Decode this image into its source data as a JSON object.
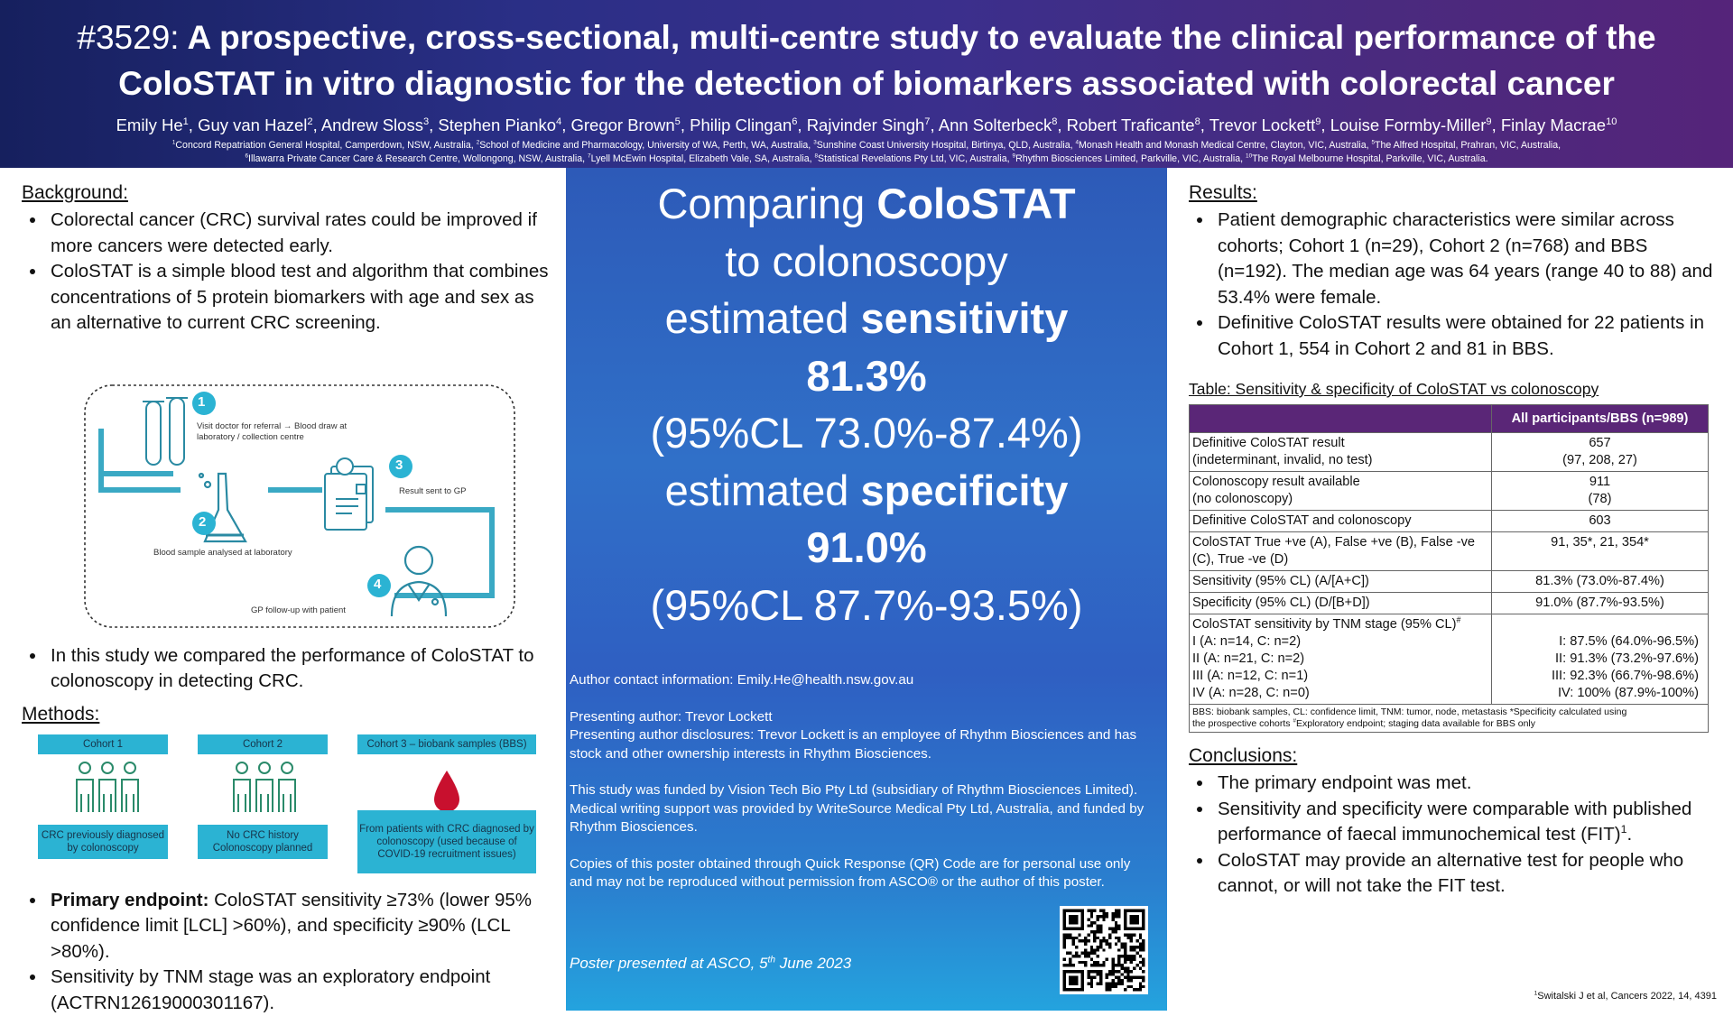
{
  "header": {
    "title_number": "#3529:",
    "title_line1": "A prospective, cross-sectional, multi-centre study to evaluate the clinical performance of the",
    "title_line2": "ColoSTAT in vitro diagnostic for the detection of biomarkers associated with colorectal cancer",
    "authors": [
      {
        "name": "Emily He",
        "sup": "1"
      },
      {
        "name": "Guy van Hazel",
        "sup": "2"
      },
      {
        "name": "Andrew Sloss",
        "sup": "3"
      },
      {
        "name": "Stephen Pianko",
        "sup": "4"
      },
      {
        "name": "Gregor Brown",
        "sup": "5"
      },
      {
        "name": "Philip Clingan",
        "sup": "6"
      },
      {
        "name": "Rajvinder Singh",
        "sup": "7"
      },
      {
        "name": "Ann Solterbeck",
        "sup": "8"
      },
      {
        "name": "Robert Traficante",
        "sup": "8"
      },
      {
        "name": "Trevor Lockett",
        "sup": "9"
      },
      {
        "name": "Louise Formby-Miller",
        "sup": "9"
      },
      {
        "name": "Finlay Macrae",
        "sup": "10"
      }
    ],
    "affiliations_line1": [
      {
        "sup": "1",
        "text": "Concord Repatriation General Hospital, Camperdown, NSW, Australia, "
      },
      {
        "sup": "2",
        "text": "School of Medicine and Pharmacology, University of WA, Perth, WA, Australia, "
      },
      {
        "sup": "3",
        "text": "Sunshine Coast University Hospital, Birtinya, QLD, Australia, "
      },
      {
        "sup": "4",
        "text": "Monash Health and Monash Medical Centre, Clayton, VIC, Australia, "
      },
      {
        "sup": "5",
        "text": "The Alfred Hospital, Prahran, VIC, Australia,"
      }
    ],
    "affiliations_line2": [
      {
        "sup": "6",
        "text": "Illawarra Private Cancer Care & Research Centre, Wollongong, NSW, Australia, "
      },
      {
        "sup": "7",
        "text": "Lyell McEwin Hospital, Elizabeth Vale, SA, Australia, "
      },
      {
        "sup": "8",
        "text": "Statistical Revelations Pty Ltd, VIC, Australia, "
      },
      {
        "sup": "9",
        "text": "Rhythm Biosciences Limited, Parkville, VIC, Australia, "
      },
      {
        "sup": "10",
        "text": "The Royal Melbourne Hospital, Parkville, VIC, Australia."
      }
    ]
  },
  "background": {
    "heading": "Background:",
    "bullets": [
      "Colorectal cancer (CRC) survival rates could be improved if more cancers were detected early.",
      "ColoSTAT is a simple blood test and algorithm that combines concentrations of 5 protein biomarkers with age and sex as an alternative to current CRC screening."
    ]
  },
  "diagram": {
    "step1_num": "1",
    "step1_text": "Visit doctor for referral → Blood draw at laboratory / collection centre",
    "step2_num": "2",
    "step2_text": "Blood sample analysed at laboratory",
    "step3_num": "3",
    "step3_text": "Result sent to GP",
    "step4_num": "4",
    "step4_text": "GP follow-up with patient"
  },
  "study_bullet": "In this study we compared the performance of ColoSTAT to colonoscopy in detecting CRC.",
  "methods": {
    "heading": "Methods:",
    "cohorts": [
      {
        "title": "Cohort 1",
        "desc": "CRC previously diagnosed by colonoscopy"
      },
      {
        "title": "Cohort 2",
        "desc": "No CRC history Colonoscopy planned"
      },
      {
        "title": "Cohort 3 – biobank samples (BBS)",
        "desc": "From patients with CRC diagnosed by colonoscopy (used because of COVID-19 recruitment issues)"
      }
    ],
    "primary_label": "Primary endpoint:",
    "primary_text": " ColoSTAT sensitivity ≥73% (lower 95% confidence limit [LCL] >60%), and specificity ≥90% (LCL >80%).",
    "exploratory": "Sensitivity by TNM stage was an exploratory endpoint (ACTRN12619000301167)."
  },
  "center": {
    "line1_plain": "Comparing ",
    "line1_bold": "ColoSTAT",
    "line2": "to colonoscopy",
    "line3_plain": "estimated ",
    "line3_bold": "sensitivity",
    "sensitivity": "81.3%",
    "sensitivity_ci": "(95%CL 73.0%-87.4%)",
    "line5_plain": "estimated ",
    "line5_bold": "specificity",
    "specificity": "91.0%",
    "specificity_ci": "(95%CL 87.7%-93.5%)",
    "contact": "Author contact information: Emily.He@health.nsw.gov.au",
    "presenting": "Presenting author: Trevor Lockett",
    "disclosures": "Presenting author disclosures: Trevor Lockett is an employee of Rhythm Biosciences and has stock and other ownership interests in Rhythm Biosciences.",
    "funding": "This study was funded by Vision Tech Bio Pty Ltd (subsidiary of Rhythm Biosciences Limited). Medical writing support was provided by WriteSource Medical Pty Ltd, Australia, and funded by Rhythm Biosciences.",
    "copies": "Copies of this poster obtained through Quick Response (QR) Code are for personal use only and may not be reproduced without permission from ASCO® or the author of this poster.",
    "poster_pre": "Poster presented at ASCO, 5",
    "poster_sup": "th",
    "poster_post": " June 2023"
  },
  "results": {
    "heading": "Results:",
    "bullets": [
      "Patient demographic characteristics were similar across cohorts; Cohort 1 (n=29), Cohort 2 (n=768) and BBS (n=192).  The median age was 64 years (range 40 to 88) and 53.4% were female.",
      "Definitive ColoSTAT results were obtained for 22 patients in Cohort 1, 554 in Cohort 2 and 81 in BBS."
    ]
  },
  "table": {
    "caption": "Table: Sensitivity & specificity of ColoSTAT vs colonoscopy",
    "header": "All participants/BBS (n=989)",
    "rows": [
      {
        "label1": "Definitive  ColoSTAT result",
        "label2": "(indeterminant, invalid, no test)",
        "v1": "657",
        "v2": "(97, 208, 27)"
      },
      {
        "label1": "Colonoscopy result available",
        "label2": "(no colonoscopy)",
        "v1": "911",
        "v2": "(78)"
      },
      {
        "label1": "Definitive ColoSTAT and colonoscopy",
        "v1": "603"
      },
      {
        "label1": "ColoSTAT True +ve (A), False +ve (B), False -ve (C), True -ve (D)",
        "v1": "91, 35*, 21, 354*"
      },
      {
        "label1": "Sensitivity (95% CL) (A/[A+C])",
        "v1": "81.3% (73.0%-87.4%)"
      },
      {
        "label1": "Specificity (95% CL) (D/[B+D])",
        "v1": "91.0% (87.7%-93.5%)"
      }
    ],
    "tnm_title": "ColoSTAT sensitivity by TNM stage (95% CL)",
    "tnm_sup": "#",
    "tnm": [
      {
        "label": "I (A: n=14, C: n=2)",
        "value": "I: 87.5% (64.0%-96.5%)"
      },
      {
        "label": "II (A: n=21, C: n=2)",
        "value": "II: 91.3% (73.2%-97.6%)"
      },
      {
        "label": "III (A: n=12, C: n=1)",
        "value": "III: 92.3% (66.7%-98.6%)"
      },
      {
        "label": "IV (A: n=28, C: n=0)",
        "value": "IV: 100% (87.9%-100%)"
      }
    ],
    "footnote1": "BBS: biobank samples, CL: confidence limit, TNM: tumor, node, metastasis   *Specificity calculated using",
    "footnote2": "the prospective cohorts ",
    "footnote_sup": "#",
    "footnote3": "Exploratory endpoint; staging data available for BBS only"
  },
  "conclusions": {
    "heading": "Conclusions:",
    "b1": "The primary endpoint was met.",
    "b2": "Sensitivity and specificity were comparable with published performance of faecal immunochemical test (FIT)",
    "b2_sup": "1",
    "b2_end": ".",
    "b3": "ColoSTAT may provide an alternative test for people who cannot, or will not take the FIT test."
  },
  "reference": {
    "sup": "1",
    "text": "Switalski J et al, Cancers 2022, 14, 4391"
  },
  "colors": {
    "accent_cyan": "#2bb3d3",
    "table_header": "#5a2677",
    "diagram_line": "#3aa9c4",
    "blood_drop": "#c8102e"
  }
}
